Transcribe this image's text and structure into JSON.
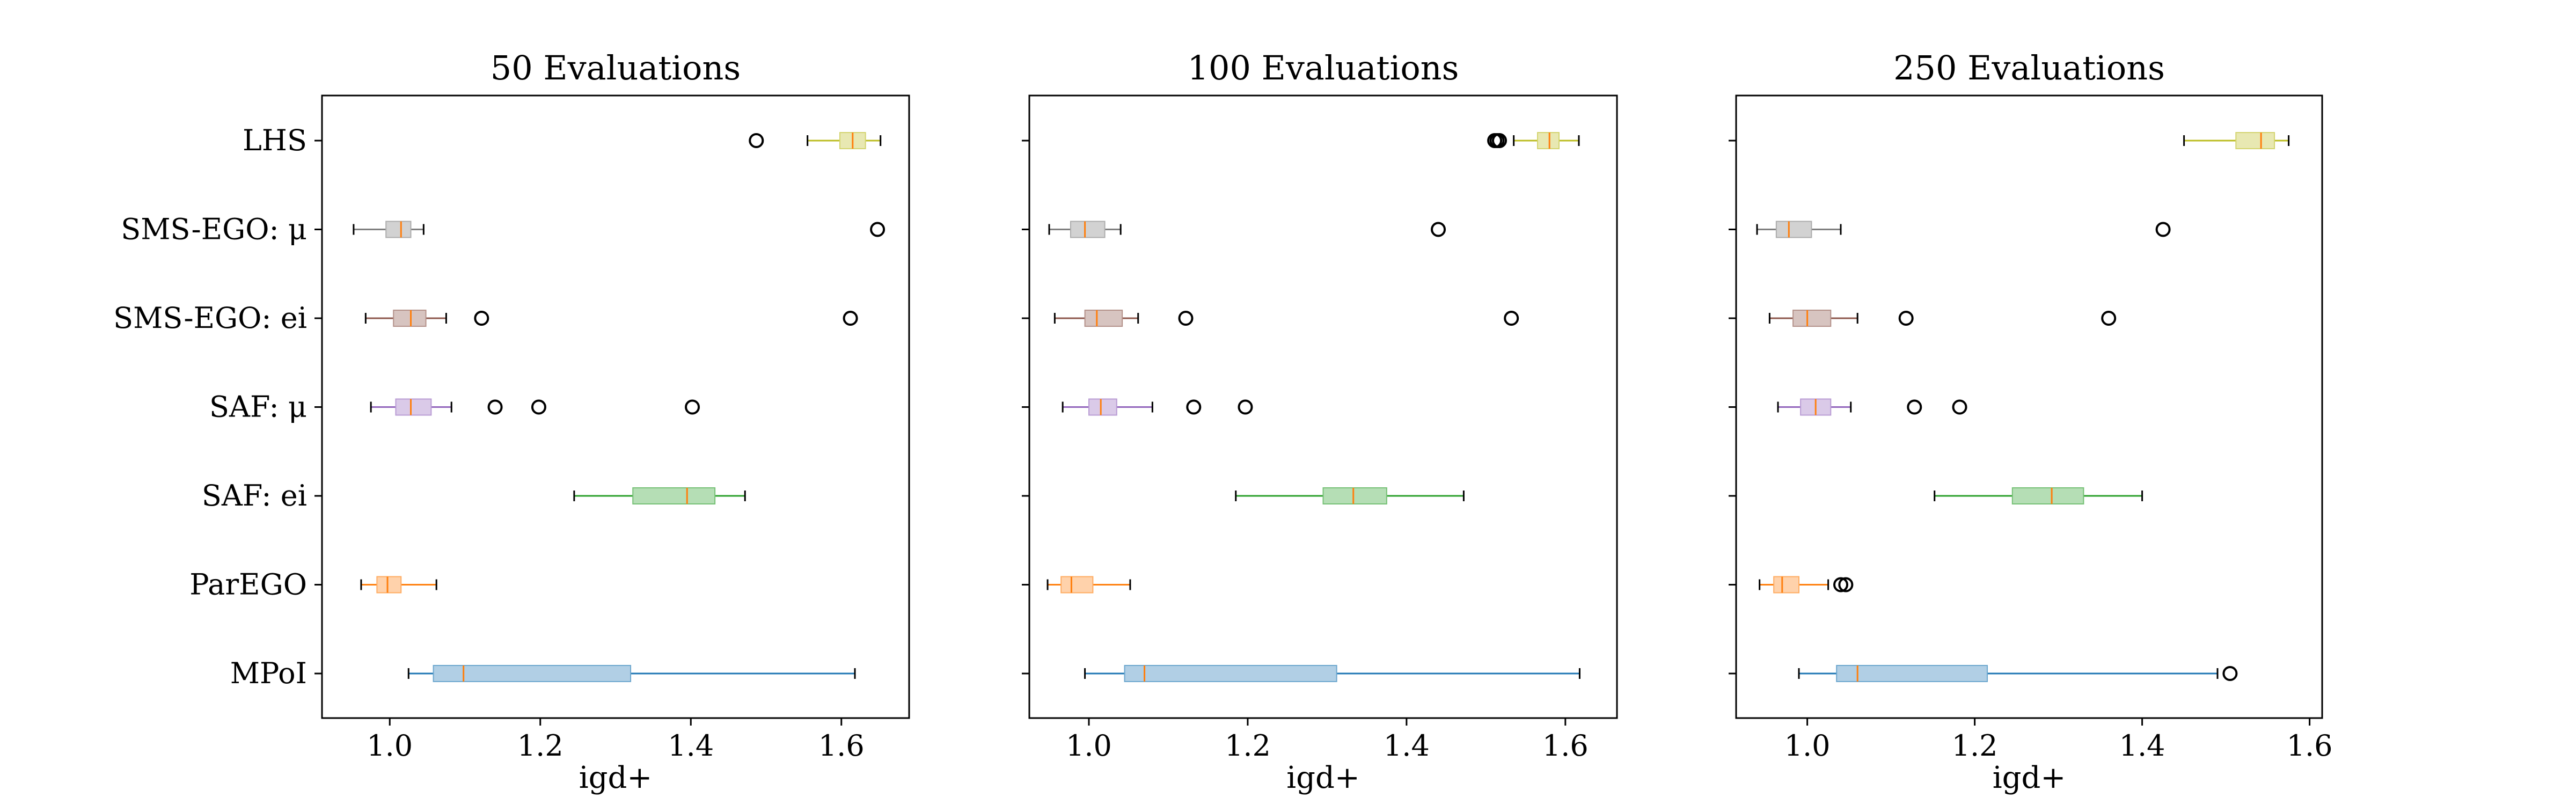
{
  "chart_data": [
    {
      "type": "boxplot",
      "orientation": "horizontal",
      "title": "50 Evaluations",
      "xlabel": "igd+",
      "xlim": [
        0.91,
        1.69
      ],
      "xticks": [
        "1.0",
        "1.2",
        "1.4",
        "1.6"
      ],
      "categories": [
        "LHS",
        "SMS-EGO: μ",
        "SMS-EGO: ei",
        "SAF: μ",
        "SAF: ei",
        "ParEGO",
        "MPoI"
      ],
      "boxes": [
        {
          "name": "LHS",
          "color": "#bcbd22",
          "whislo": 1.555,
          "q1": 1.598,
          "med": 1.615,
          "q3": 1.632,
          "whishi": 1.652,
          "fliers": [
            1.487
          ]
        },
        {
          "name": "SMS-EGO: μ",
          "color": "#7f7f7f",
          "whislo": 0.952,
          "q1": 0.995,
          "med": 1.015,
          "q3": 1.028,
          "whishi": 1.045,
          "fliers": [
            1.648
          ]
        },
        {
          "name": "SMS-EGO: ei",
          "color": "#8c564b",
          "whislo": 0.968,
          "q1": 1.005,
          "med": 1.028,
          "q3": 1.048,
          "whishi": 1.075,
          "fliers": [
            1.122,
            1.612
          ]
        },
        {
          "name": "SAF: μ",
          "color": "#9467bd",
          "whislo": 0.975,
          "q1": 1.008,
          "med": 1.028,
          "q3": 1.055,
          "whishi": 1.082,
          "fliers": [
            1.14,
            1.198,
            1.402
          ]
        },
        {
          "name": "SAF: ei",
          "color": "#2ca02c",
          "whislo": 1.245,
          "q1": 1.323,
          "med": 1.395,
          "q3": 1.432,
          "whishi": 1.472,
          "fliers": []
        },
        {
          "name": "ParEGO",
          "color": "#ff7f0e",
          "whislo": 0.962,
          "q1": 0.983,
          "med": 0.997,
          "q3": 1.015,
          "whishi": 1.062,
          "fliers": []
        },
        {
          "name": "MPoI",
          "color": "#1f77b4",
          "whislo": 1.025,
          "q1": 1.058,
          "med": 1.098,
          "q3": 1.32,
          "whishi": 1.618,
          "fliers": []
        }
      ]
    },
    {
      "type": "boxplot",
      "orientation": "horizontal",
      "title": "100 Evaluations",
      "xlabel": "igd+",
      "xlim": [
        0.925,
        1.665
      ],
      "xticks": [
        "1.0",
        "1.2",
        "1.4",
        "1.6"
      ],
      "categories": [
        "LHS",
        "SMS-EGO: μ",
        "SMS-EGO: ei",
        "SAF: μ",
        "SAF: ei",
        "ParEGO",
        "MPoI"
      ],
      "boxes": [
        {
          "name": "LHS",
          "color": "#bcbd22",
          "whislo": 1.535,
          "q1": 1.565,
          "med": 1.58,
          "q3": 1.592,
          "whishi": 1.617,
          "fliers": [
            1.511,
            1.514,
            1.517
          ]
        },
        {
          "name": "SMS-EGO: μ",
          "color": "#7f7f7f",
          "whislo": 0.95,
          "q1": 0.977,
          "med": 0.995,
          "q3": 1.02,
          "whishi": 1.04,
          "fliers": [
            1.44
          ]
        },
        {
          "name": "SMS-EGO: ei",
          "color": "#8c564b",
          "whislo": 0.957,
          "q1": 0.995,
          "med": 1.01,
          "q3": 1.042,
          "whishi": 1.062,
          "fliers": [
            1.122,
            1.532
          ]
        },
        {
          "name": "SAF: μ",
          "color": "#9467bd",
          "whislo": 0.967,
          "q1": 1.0,
          "med": 1.015,
          "q3": 1.035,
          "whishi": 1.08,
          "fliers": [
            1.132,
            1.197
          ]
        },
        {
          "name": "SAF: ei",
          "color": "#2ca02c",
          "whislo": 1.185,
          "q1": 1.295,
          "med": 1.333,
          "q3": 1.375,
          "whishi": 1.472,
          "fliers": []
        },
        {
          "name": "ParEGO",
          "color": "#ff7f0e",
          "whislo": 0.948,
          "q1": 0.965,
          "med": 0.978,
          "q3": 1.005,
          "whishi": 1.052,
          "fliers": []
        },
        {
          "name": "MPoI",
          "color": "#1f77b4",
          "whislo": 0.995,
          "q1": 1.045,
          "med": 1.07,
          "q3": 1.312,
          "whishi": 1.618,
          "fliers": []
        }
      ]
    },
    {
      "type": "boxplot",
      "orientation": "horizontal",
      "title": "250 Evaluations",
      "xlabel": "igd+",
      "xlim": [
        0.915,
        1.615
      ],
      "xticks": [
        "1.0",
        "1.2",
        "1.4",
        "1.6"
      ],
      "categories": [
        "LHS",
        "SMS-EGO: μ",
        "SMS-EGO: ei",
        "SAF: μ",
        "SAF: ei",
        "ParEGO",
        "MPoI"
      ],
      "boxes": [
        {
          "name": "LHS",
          "color": "#bcbd22",
          "whislo": 1.45,
          "q1": 1.512,
          "med": 1.542,
          "q3": 1.558,
          "whishi": 1.575,
          "fliers": []
        },
        {
          "name": "SMS-EGO: μ",
          "color": "#7f7f7f",
          "whislo": 0.94,
          "q1": 0.963,
          "med": 0.978,
          "q3": 1.005,
          "whishi": 1.04,
          "fliers": [
            1.425
          ]
        },
        {
          "name": "SMS-EGO: ei",
          "color": "#8c564b",
          "whislo": 0.955,
          "q1": 0.983,
          "med": 1.0,
          "q3": 1.028,
          "whishi": 1.06,
          "fliers": [
            1.118,
            1.36
          ]
        },
        {
          "name": "SAF: μ",
          "color": "#9467bd",
          "whislo": 0.965,
          "q1": 0.992,
          "med": 1.01,
          "q3": 1.028,
          "whishi": 1.052,
          "fliers": [
            1.128,
            1.182
          ]
        },
        {
          "name": "SAF: ei",
          "color": "#2ca02c",
          "whislo": 1.152,
          "q1": 1.245,
          "med": 1.292,
          "q3": 1.33,
          "whishi": 1.4,
          "fliers": []
        },
        {
          "name": "ParEGO",
          "color": "#ff7f0e",
          "whislo": 0.943,
          "q1": 0.96,
          "med": 0.97,
          "q3": 0.99,
          "whishi": 1.025,
          "fliers": [
            1.04,
            1.046
          ]
        },
        {
          "name": "MPoI",
          "color": "#1f77b4",
          "whislo": 0.99,
          "q1": 1.035,
          "med": 1.06,
          "q3": 1.215,
          "whishi": 1.49,
          "fliers": [
            1.505
          ]
        }
      ]
    }
  ]
}
